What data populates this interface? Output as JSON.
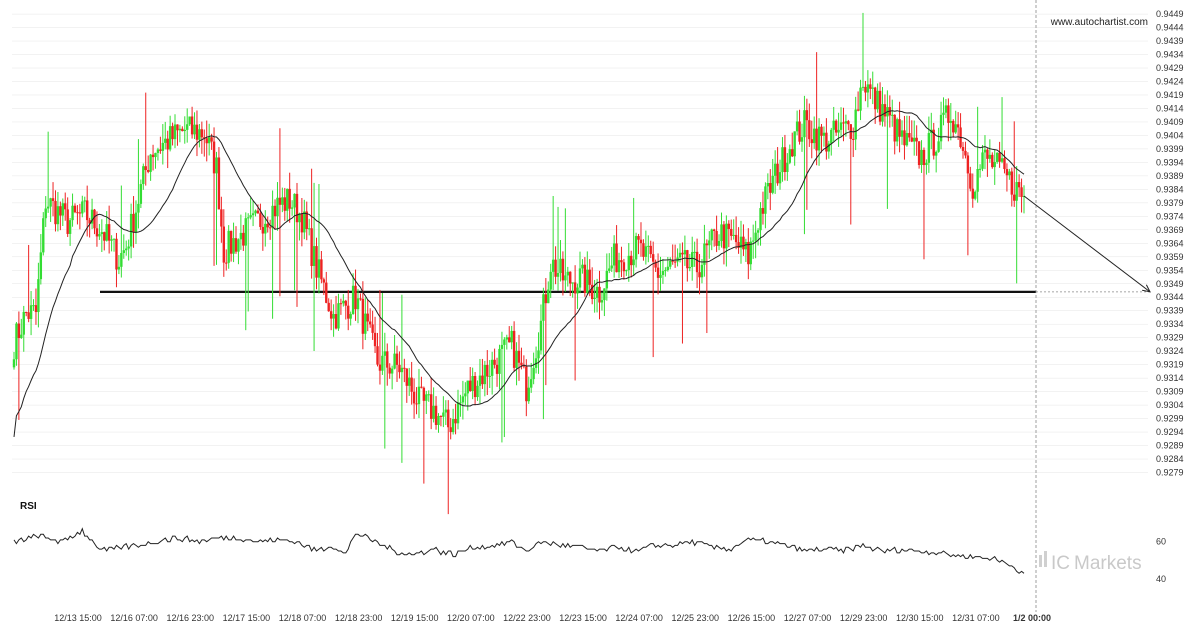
{
  "chart_data": {
    "type": "candlestick",
    "symbol_site": "www.autochartist.com",
    "brand": {
      "prefix": "IC",
      "suffix": "Markets"
    },
    "colors": {
      "up": "#33dd33",
      "down": "#ee2222",
      "ma": "#222222",
      "level": "#111111",
      "rsi": "#222222",
      "grid": "#e6e6e6",
      "cursor": "#888888"
    },
    "price_axis": {
      "range": [
        0.9274,
        0.9452
      ],
      "ticks": [
        "0.9449",
        "0.9444",
        "0.9439",
        "0.9434",
        "0.9429",
        "0.9424",
        "0.9419",
        "0.9414",
        "0.9409",
        "0.9404",
        "0.9399",
        "0.9394",
        "0.9389",
        "0.9384",
        "0.9379",
        "0.9374",
        "0.9369",
        "0.9364",
        "0.9359",
        "0.9354",
        "0.9349",
        "0.9344",
        "0.9339",
        "0.9334",
        "0.9329",
        "0.9324",
        "0.9319",
        "0.9314",
        "0.9309",
        "0.9304",
        "0.9299",
        "0.9294",
        "0.9289",
        "0.9284",
        "0.9279"
      ]
    },
    "time_axis": {
      "labels": [
        "12/13 15:00",
        "12/16 07:00",
        "12/16 23:00",
        "12/17 15:00",
        "12/18 07:00",
        "12/18 23:00",
        "12/19 15:00",
        "12/20 07:00",
        "12/22 23:00",
        "12/23 15:00",
        "12/24 07:00",
        "12/25 23:00",
        "12/26 15:00",
        "12/27 07:00",
        "12/29 23:00",
        "12/30 15:00",
        "12/31 07:00",
        "1/2 00:00"
      ],
      "highlight_label": "1/2 00:00"
    },
    "support_level": 0.9346,
    "projection": {
      "from": [
        0,
        0.9391
      ],
      "to": [
        34,
        0.9346
      ]
    },
    "anchors": [
      [
        0,
        0.9327
      ],
      [
        5,
        0.9338
      ],
      [
        9,
        0.9338
      ],
      [
        13,
        0.938
      ],
      [
        22,
        0.9372
      ],
      [
        29,
        0.9375
      ],
      [
        36,
        0.9369
      ],
      [
        43,
        0.9358
      ],
      [
        46,
        0.9363
      ],
      [
        56,
        0.9398
      ],
      [
        70,
        0.9406
      ],
      [
        78,
        0.9405
      ],
      [
        83,
        0.9392
      ],
      [
        86,
        0.9361
      ],
      [
        92,
        0.9366
      ],
      [
        100,
        0.9372
      ],
      [
        108,
        0.9378
      ],
      [
        113,
        0.938
      ],
      [
        118,
        0.9374
      ],
      [
        124,
        0.9355
      ],
      [
        131,
        0.9337
      ],
      [
        140,
        0.9344
      ],
      [
        149,
        0.932
      ],
      [
        158,
        0.9318
      ],
      [
        166,
        0.9305
      ],
      [
        172,
        0.9302
      ],
      [
        178,
        0.9296
      ],
      [
        186,
        0.931
      ],
      [
        195,
        0.9318
      ],
      [
        204,
        0.9326
      ],
      [
        210,
        0.9311
      ],
      [
        216,
        0.9334
      ],
      [
        220,
        0.9357
      ],
      [
        226,
        0.935
      ],
      [
        232,
        0.9351
      ],
      [
        240,
        0.9346
      ],
      [
        246,
        0.9358
      ],
      [
        256,
        0.9362
      ],
      [
        264,
        0.9353
      ],
      [
        272,
        0.9356
      ],
      [
        280,
        0.9355
      ],
      [
        289,
        0.9368
      ],
      [
        296,
        0.9364
      ],
      [
        301,
        0.9359
      ],
      [
        306,
        0.9376
      ],
      [
        312,
        0.9389
      ],
      [
        319,
        0.9402
      ],
      [
        324,
        0.9408
      ],
      [
        332,
        0.9402
      ],
      [
        338,
        0.9405
      ],
      [
        344,
        0.9408
      ],
      [
        348,
        0.9425
      ],
      [
        352,
        0.9418
      ],
      [
        358,
        0.9411
      ],
      [
        364,
        0.9402
      ],
      [
        372,
        0.9396
      ],
      [
        378,
        0.9403
      ],
      [
        384,
        0.9413
      ],
      [
        388,
        0.9404
      ],
      [
        393,
        0.9386
      ],
      [
        398,
        0.9396
      ],
      [
        403,
        0.9392
      ],
      [
        410,
        0.9385
      ],
      [
        414,
        0.9381
      ]
    ],
    "ma_period": 24,
    "rsi": {
      "title": "RSI",
      "range": [
        34,
        76
      ],
      "ticks": [
        "60",
        "40"
      ],
      "anchors": [
        [
          0,
          60
        ],
        [
          10,
          63
        ],
        [
          20,
          60
        ],
        [
          28,
          66
        ],
        [
          36,
          55
        ],
        [
          44,
          57
        ],
        [
          52,
          58
        ],
        [
          60,
          61
        ],
        [
          68,
          62
        ],
        [
          76,
          60
        ],
        [
          84,
          62
        ],
        [
          92,
          62
        ],
        [
          100,
          60
        ],
        [
          108,
          61
        ],
        [
          116,
          60
        ],
        [
          124,
          55
        ],
        [
          130,
          58
        ],
        [
          136,
          53
        ],
        [
          140,
          65
        ],
        [
          148,
          60
        ],
        [
          156,
          55
        ],
        [
          164,
          53
        ],
        [
          172,
          56
        ],
        [
          180,
          53
        ],
        [
          188,
          57
        ],
        [
          196,
          58
        ],
        [
          204,
          60
        ],
        [
          210,
          55
        ],
        [
          216,
          60
        ],
        [
          224,
          58
        ],
        [
          232,
          57
        ],
        [
          240,
          55
        ],
        [
          248,
          57
        ],
        [
          256,
          55
        ],
        [
          262,
          58
        ],
        [
          270,
          58
        ],
        [
          278,
          60
        ],
        [
          286,
          57
        ],
        [
          294,
          56
        ],
        [
          300,
          61
        ],
        [
          308,
          60
        ],
        [
          316,
          58
        ],
        [
          324,
          55
        ],
        [
          332,
          56
        ],
        [
          340,
          55
        ],
        [
          348,
          58
        ],
        [
          356,
          55
        ],
        [
          364,
          56
        ],
        [
          372,
          55
        ],
        [
          380,
          54
        ],
        [
          390,
          52
        ],
        [
          400,
          51
        ],
        [
          408,
          48
        ],
        [
          414,
          43
        ]
      ]
    }
  }
}
